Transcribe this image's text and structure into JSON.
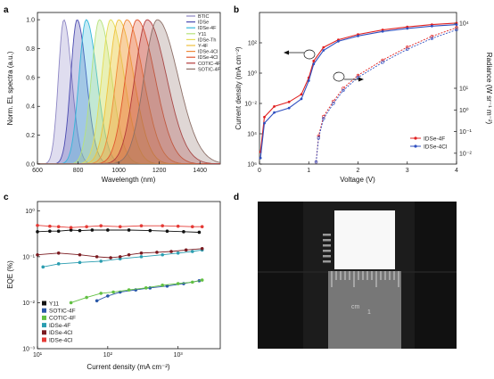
{
  "panels": {
    "a": "a",
    "b": "b",
    "c": "c",
    "d": "d"
  },
  "chart_data": [
    {
      "panel": "a",
      "type": "area",
      "xlabel": "Wavelength (nm)",
      "ylabel": "Norm. EL spectra (a.u.)",
      "xlim": [
        600,
        1500
      ],
      "ylim": [
        0,
        1.05
      ],
      "xticks": [
        600,
        800,
        1000,
        1200,
        1400
      ],
      "yticks": [
        0.0,
        0.2,
        0.4,
        0.6,
        0.8,
        1.0
      ],
      "xtick_labels": [
        "600",
        "800",
        "1000",
        "1200",
        "1400"
      ],
      "ytick_labels": [
        "0.0",
        "0.2",
        "0.4",
        "0.6",
        "0.8",
        "1.0"
      ],
      "legend_position": "top-left",
      "series": [
        {
          "name": "BTIC",
          "peak": 730,
          "color": "#8d86c4"
        },
        {
          "name": "IDSe",
          "peak": 795,
          "color": "#4a4ab0"
        },
        {
          "name": "IDSe-4F",
          "peak": 840,
          "color": "#33b7da"
        },
        {
          "name": "Y11",
          "peak": 905,
          "color": "#b6e27c"
        },
        {
          "name": "IDSe-Th",
          "peak": 960,
          "color": "#e4dd55"
        },
        {
          "name": "Y-4F",
          "peak": 1000,
          "color": "#f0c23c"
        },
        {
          "name": "IDSe-4Cl",
          "peak": 1040,
          "color": "#f08a3a"
        },
        {
          "name": "IDSe-4Cl",
          "peak": 1090,
          "color": "#e1562f"
        },
        {
          "name": "COTIC-4F",
          "peak": 1140,
          "color": "#b33a3a"
        },
        {
          "name": "SOTIC-4F",
          "peak": 1190,
          "color": "#8d7068"
        }
      ]
    },
    {
      "panel": "b",
      "type": "line",
      "xlabel": "Voltage (V)",
      "ylabel": "Current density (mA cm⁻²)",
      "y2label": "Radiance (W sr⁻¹ m⁻²)",
      "xlim": [
        0,
        4
      ],
      "ylim_log10": [
        -6,
        4
      ],
      "y2lim_log10": [
        -2.5,
        4.5
      ],
      "xticks": [
        0,
        1,
        2,
        3,
        4
      ],
      "xtick_labels": [
        "0",
        "1",
        "2",
        "3",
        "4"
      ],
      "ytick_labels": [
        "10⁶",
        "10⁴",
        "10⁻²",
        "10⁰",
        "10²"
      ],
      "y2tick_labels": [
        "10⁻²",
        "10⁻¹",
        "10⁰",
        "10¹",
        "10⁴"
      ],
      "legend_position": "bottom-right",
      "series": [
        {
          "name": "IDSe-4F",
          "color": "#e02020",
          "current_voltage": [
            [
              0.02,
              -5.2
            ],
            [
              0.1,
              -2.9
            ],
            [
              0.3,
              -2.2
            ],
            [
              0.6,
              -1.9
            ],
            [
              0.85,
              -1.4
            ],
            [
              1.0,
              -0.3
            ],
            [
              1.1,
              0.8
            ],
            [
              1.3,
              1.7
            ],
            [
              1.6,
              2.2
            ],
            [
              2.0,
              2.55
            ],
            [
              2.5,
              2.85
            ],
            [
              3.0,
              3.05
            ],
            [
              3.5,
              3.2
            ],
            [
              4.0,
              3.3
            ]
          ],
          "radiance_voltage": [
            [
              1.15,
              -2.4
            ],
            [
              1.2,
              -1.2
            ],
            [
              1.3,
              -0.3
            ],
            [
              1.5,
              0.4
            ],
            [
              1.7,
              1.0
            ],
            [
              2.0,
              1.6
            ],
            [
              2.5,
              2.3
            ],
            [
              3.0,
              2.9
            ],
            [
              3.5,
              3.4
            ],
            [
              4.0,
              3.8
            ]
          ]
        },
        {
          "name": "IDSe-4Cl",
          "color": "#3050c0",
          "current_voltage": [
            [
              0.02,
              -5.6
            ],
            [
              0.1,
              -3.3
            ],
            [
              0.3,
              -2.6
            ],
            [
              0.6,
              -2.3
            ],
            [
              0.85,
              -1.7
            ],
            [
              1.0,
              -0.5
            ],
            [
              1.1,
              0.6
            ],
            [
              1.3,
              1.5
            ],
            [
              1.6,
              2.1
            ],
            [
              2.0,
              2.45
            ],
            [
              2.5,
              2.75
            ],
            [
              3.0,
              2.95
            ],
            [
              3.5,
              3.1
            ],
            [
              4.0,
              3.2
            ]
          ],
          "radiance_voltage": [
            [
              1.15,
              -2.4
            ],
            [
              1.2,
              -1.3
            ],
            [
              1.3,
              -0.4
            ],
            [
              1.5,
              0.3
            ],
            [
              1.7,
              0.9
            ],
            [
              2.0,
              1.5
            ],
            [
              2.5,
              2.2
            ],
            [
              3.0,
              2.8
            ],
            [
              3.5,
              3.3
            ],
            [
              4.0,
              3.7
            ]
          ]
        }
      ]
    },
    {
      "panel": "c",
      "type": "scatter",
      "xlabel": "Current density (mA cm⁻²)",
      "ylabel": "EQE (%)",
      "xlim_log10": [
        1,
        3.6
      ],
      "ylim_log10": [
        -3,
        0.2
      ],
      "xtick_labels": [
        "10¹",
        "10²",
        "10³"
      ],
      "ytick_labels": [
        "10⁻³",
        "10⁻²",
        "10⁻¹",
        "10⁰"
      ],
      "legend_position": "bottom-left",
      "series": [
        {
          "name": "Y11",
          "color": "#111111",
          "points": [
            [
              10,
              0.35
            ],
            [
              15,
              0.36
            ],
            [
              20,
              0.36
            ],
            [
              30,
              0.38
            ],
            [
              40,
              0.37
            ],
            [
              60,
              0.38
            ],
            [
              100,
              0.38
            ],
            [
              200,
              0.38
            ],
            [
              400,
              0.37
            ],
            [
              700,
              0.36
            ],
            [
              1200,
              0.35
            ],
            [
              2000,
              0.34
            ]
          ]
        },
        {
          "name": "SOTIC-4F",
          "color": "#2a58a8",
          "points": [
            [
              70,
              0.011
            ],
            [
              100,
              0.014
            ],
            [
              150,
              0.017
            ],
            [
              250,
              0.019
            ],
            [
              400,
              0.021
            ],
            [
              700,
              0.023
            ],
            [
              1200,
              0.026
            ],
            [
              2000,
              0.03
            ]
          ]
        },
        {
          "name": "COTIC-4F",
          "color": "#62c043",
          "points": [
            [
              30,
              0.01
            ],
            [
              50,
              0.013
            ],
            [
              80,
              0.016
            ],
            [
              120,
              0.017
            ],
            [
              200,
              0.019
            ],
            [
              350,
              0.021
            ],
            [
              600,
              0.024
            ],
            [
              1000,
              0.026
            ],
            [
              1600,
              0.028
            ],
            [
              2200,
              0.031
            ]
          ]
        },
        {
          "name": "IDSe-4F",
          "color": "#2a9db0",
          "points": [
            [
              12,
              0.06
            ],
            [
              20,
              0.07
            ],
            [
              40,
              0.075
            ],
            [
              80,
              0.08
            ],
            [
              150,
              0.09
            ],
            [
              300,
              0.1
            ],
            [
              600,
              0.11
            ],
            [
              1000,
              0.12
            ],
            [
              1600,
              0.13
            ],
            [
              2200,
              0.14
            ]
          ]
        },
        {
          "name": "IDSe-4Cl",
          "color": "#7a1a20",
          "points": [
            [
              10,
              0.11
            ],
            [
              20,
              0.12
            ],
            [
              40,
              0.11
            ],
            [
              70,
              0.1
            ],
            [
              110,
              0.095
            ],
            [
              150,
              0.1
            ],
            [
              200,
              0.11
            ],
            [
              300,
              0.12
            ],
            [
              500,
              0.125
            ],
            [
              800,
              0.13
            ],
            [
              1300,
              0.14
            ],
            [
              2200,
              0.15
            ]
          ]
        },
        {
          "name": "IDSe-4Cl",
          "color": "#e53a35",
          "points": [
            [
              10,
              0.48
            ],
            [
              15,
              0.46
            ],
            [
              20,
              0.45
            ],
            [
              30,
              0.43
            ],
            [
              50,
              0.45
            ],
            [
              80,
              0.47
            ],
            [
              150,
              0.45
            ],
            [
              300,
              0.47
            ],
            [
              600,
              0.47
            ],
            [
              1000,
              0.46
            ],
            [
              1600,
              0.45
            ],
            [
              2200,
              0.45
            ]
          ]
        }
      ]
    }
  ],
  "photo": {
    "panel": "d",
    "ruler_text": "cm",
    "ruler_number": "1"
  }
}
